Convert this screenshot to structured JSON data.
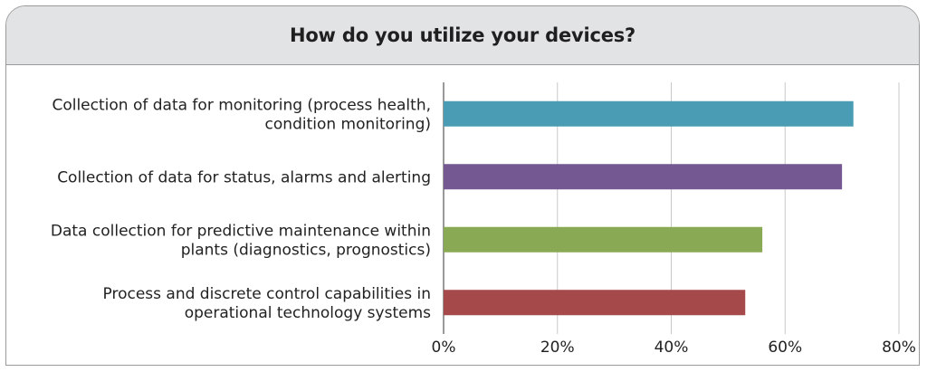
{
  "chart_data": {
    "type": "bar",
    "orientation": "horizontal",
    "title": "How do you utilize your devices?",
    "categories": [
      [
        "Collection of data for monitoring (process health,",
        "condition monitoring)"
      ],
      [
        "Collection of data for status, alarms and alerting"
      ],
      [
        "Data collection for predictive maintenance within",
        "plants (diagnostics, prognostics)"
      ],
      [
        "Process and discrete control capabilities in",
        "operational technology systems"
      ]
    ],
    "values": [
      72,
      70,
      56,
      53
    ],
    "colors": [
      "#4a9bb4",
      "#735891",
      "#8aa955",
      "#a5494a"
    ],
    "xlim": [
      0,
      80
    ],
    "xticks": [
      "0%",
      "20%",
      "40%",
      "60%",
      "80%"
    ],
    "xtick_values": [
      0,
      20,
      40,
      60,
      80
    ],
    "grid": true,
    "legend": "none"
  }
}
